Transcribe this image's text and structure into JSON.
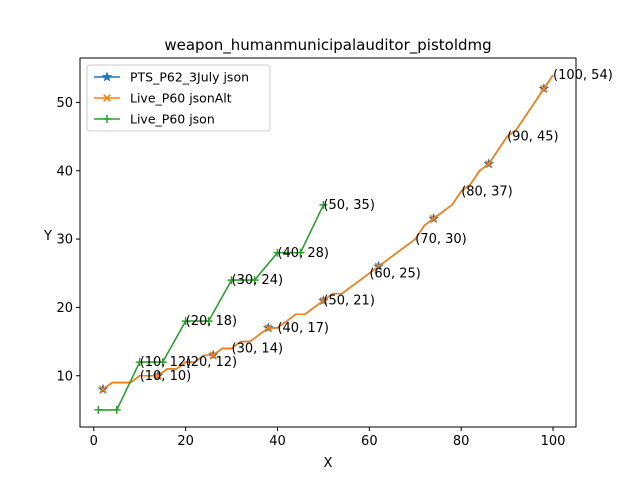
{
  "chart_data": {
    "type": "line",
    "title": "weapon_humanmunicipalauditor_pistoldmg",
    "xlabel": "X",
    "ylabel": "Y",
    "xlim": [
      -3,
      105
    ],
    "ylim": [
      2.5,
      56.5
    ],
    "xticks": [
      0,
      20,
      40,
      60,
      80,
      100
    ],
    "yticks": [
      10,
      20,
      30,
      40,
      50
    ],
    "legend_position": "upper-left",
    "grid": false,
    "series": [
      {
        "name": "PTS_P62_3July json",
        "color": "#1f77b4",
        "marker": "star",
        "x": [
          2,
          4,
          6,
          8,
          10,
          12,
          14,
          16,
          18,
          20,
          22,
          24,
          26,
          28,
          30,
          32,
          34,
          36,
          38,
          40,
          42,
          44,
          46,
          48,
          50,
          52,
          54,
          56,
          58,
          60,
          62,
          64,
          66,
          68,
          70,
          72,
          74,
          76,
          78,
          80,
          82,
          84,
          86,
          88,
          90,
          92,
          94,
          96,
          98,
          100
        ],
        "y": [
          8,
          9,
          9,
          9,
          10,
          10,
          10,
          11,
          11,
          12,
          12,
          13,
          13,
          14,
          14,
          15,
          15,
          16,
          17,
          17,
          18,
          19,
          19,
          20,
          21,
          22,
          22,
          23,
          24,
          25,
          26,
          27,
          28,
          29,
          30,
          32,
          33,
          34,
          35,
          37,
          38,
          40,
          41,
          43,
          45,
          46,
          48,
          50,
          52,
          54
        ],
        "marker_x": [
          2,
          14,
          26,
          38,
          50,
          62,
          74,
          86,
          98
        ],
        "marker_y": [
          8,
          10,
          13,
          17,
          21,
          26,
          33,
          41,
          52
        ]
      },
      {
        "name": "Live_P60 jsonAlt",
        "color": "#ff7f0e",
        "marker": "x",
        "x": [
          2,
          4,
          6,
          8,
          10,
          12,
          14,
          16,
          18,
          20,
          22,
          24,
          26,
          28,
          30,
          32,
          34,
          36,
          38,
          40,
          42,
          44,
          46,
          48,
          50,
          52,
          54,
          56,
          58,
          60,
          62,
          64,
          66,
          68,
          70,
          72,
          74,
          76,
          78,
          80,
          82,
          84,
          86,
          88,
          90,
          92,
          94,
          96,
          98,
          100
        ],
        "y": [
          8,
          9,
          9,
          9,
          10,
          10,
          10,
          11,
          11,
          12,
          12,
          13,
          13,
          14,
          14,
          15,
          15,
          16,
          17,
          17,
          18,
          19,
          19,
          20,
          21,
          22,
          22,
          23,
          24,
          25,
          26,
          27,
          28,
          29,
          30,
          32,
          33,
          34,
          35,
          37,
          38,
          40,
          41,
          43,
          45,
          46,
          48,
          50,
          52,
          54
        ],
        "marker_x": [
          2,
          14,
          26,
          38,
          50,
          62,
          74,
          86,
          98
        ],
        "marker_y": [
          8,
          10,
          13,
          17,
          21,
          26,
          33,
          41,
          52
        ]
      },
      {
        "name": "Live_P60 json",
        "color": "#2ca02c",
        "marker": "plus",
        "x": [
          1,
          5,
          10,
          15,
          20,
          25,
          30,
          35,
          40,
          45,
          50
        ],
        "y": [
          5,
          5,
          12,
          12,
          18,
          18,
          24,
          24,
          28,
          28,
          35
        ],
        "marker_x": [
          1,
          5,
          10,
          15,
          20,
          25,
          30,
          35,
          40,
          45,
          50
        ],
        "marker_y": [
          5,
          5,
          12,
          12,
          18,
          18,
          24,
          24,
          28,
          28,
          35
        ]
      }
    ],
    "annotations": [
      {
        "text": "(10, 10)",
        "x": 10,
        "y": 10
      },
      {
        "text": "(10, 12)",
        "x": 10,
        "y": 12
      },
      {
        "text": "(20, 12)",
        "x": 20,
        "y": 12
      },
      {
        "text": "(20, 18)",
        "x": 20,
        "y": 18
      },
      {
        "text": "(30, 14)",
        "x": 30,
        "y": 14
      },
      {
        "text": "(30, 24)",
        "x": 30,
        "y": 24
      },
      {
        "text": "(40, 17)",
        "x": 40,
        "y": 17
      },
      {
        "text": "(40, 28)",
        "x": 40,
        "y": 28
      },
      {
        "text": "(50, 21)",
        "x": 50,
        "y": 21
      },
      {
        "text": "(50, 35)",
        "x": 50,
        "y": 35
      },
      {
        "text": "(60, 25)",
        "x": 60,
        "y": 25
      },
      {
        "text": "(70, 30)",
        "x": 70,
        "y": 30
      },
      {
        "text": "(80, 37)",
        "x": 80,
        "y": 37
      },
      {
        "text": "(90, 45)",
        "x": 90,
        "y": 45
      },
      {
        "text": "(100, 54)",
        "x": 100,
        "y": 54
      }
    ]
  }
}
